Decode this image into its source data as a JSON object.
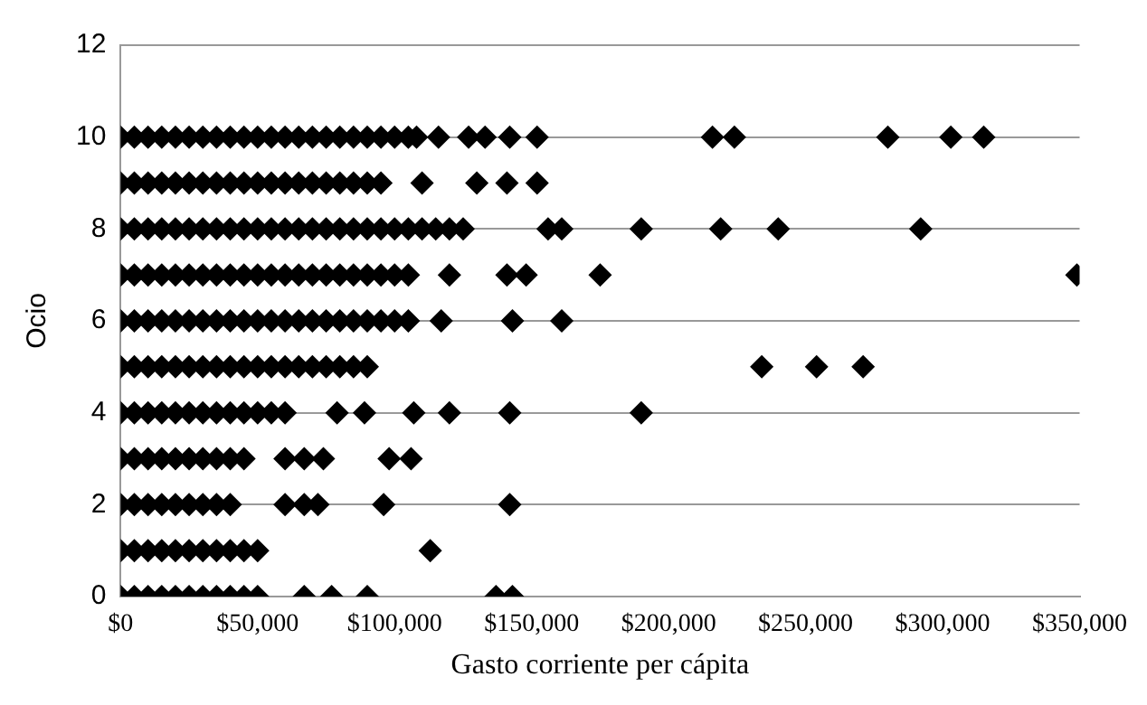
{
  "chart_data": {
    "type": "scatter",
    "xlabel": "Gasto corriente per cápita",
    "ylabel": "Ocio",
    "marker": "diamond",
    "grid": "y",
    "xlim": [
      0,
      350000
    ],
    "xticks": [
      {
        "value": 0,
        "label": "$0"
      },
      {
        "value": 50000,
        "label": "$50,000"
      },
      {
        "value": 100000,
        "label": "$100,000"
      },
      {
        "value": 150000,
        "label": "$150,000"
      },
      {
        "value": 200000,
        "label": "$200,000"
      },
      {
        "value": 250000,
        "label": "$250,000"
      },
      {
        "value": 300000,
        "label": "$300,000"
      },
      {
        "value": 350000,
        "label": "$350,000"
      }
    ],
    "ylim": [
      0,
      12
    ],
    "yticks": [
      0,
      2,
      4,
      6,
      8,
      10,
      12
    ],
    "series": [
      {
        "color": "#000000",
        "x": [
          0,
          5000,
          10000,
          15000,
          20000,
          25000,
          30000,
          35000,
          40000,
          45000,
          50000,
          55000,
          60000,
          65000,
          70000,
          75000,
          80000,
          85000,
          90000,
          95000,
          100000,
          105000,
          108000,
          116000,
          127000,
          133000,
          142000,
          152000,
          216000,
          224000,
          280000,
          303000,
          315000
        ],
        "values": [
          10,
          10,
          10,
          10,
          10,
          10,
          10,
          10,
          10,
          10,
          10,
          10,
          10,
          10,
          10,
          10,
          10,
          10,
          10,
          10,
          10,
          10,
          10,
          10,
          10,
          10,
          10,
          10,
          10,
          10,
          10,
          10,
          10
        ]
      },
      {
        "color": "#000000",
        "x": [
          0,
          5000,
          10000,
          15000,
          20000,
          25000,
          30000,
          35000,
          40000,
          45000,
          50000,
          55000,
          60000,
          65000,
          70000,
          75000,
          80000,
          85000,
          90000,
          95000,
          110000,
          130000,
          141000,
          152000
        ],
        "values": [
          9,
          9,
          9,
          9,
          9,
          9,
          9,
          9,
          9,
          9,
          9,
          9,
          9,
          9,
          9,
          9,
          9,
          9,
          9,
          9,
          9,
          9,
          9,
          9
        ]
      },
      {
        "color": "#000000",
        "x": [
          0,
          5000,
          10000,
          15000,
          20000,
          25000,
          30000,
          35000,
          40000,
          45000,
          50000,
          55000,
          60000,
          65000,
          70000,
          75000,
          80000,
          85000,
          90000,
          95000,
          100000,
          105000,
          110000,
          115000,
          120000,
          125000,
          156000,
          161000,
          190000,
          219000,
          240000,
          292000
        ],
        "values": [
          8,
          8,
          8,
          8,
          8,
          8,
          8,
          8,
          8,
          8,
          8,
          8,
          8,
          8,
          8,
          8,
          8,
          8,
          8,
          8,
          8,
          8,
          8,
          8,
          8,
          8,
          8,
          8,
          8,
          8,
          8,
          8
        ]
      },
      {
        "color": "#000000",
        "x": [
          0,
          5000,
          10000,
          15000,
          20000,
          25000,
          30000,
          35000,
          40000,
          45000,
          50000,
          55000,
          60000,
          65000,
          70000,
          75000,
          80000,
          85000,
          90000,
          95000,
          100000,
          105000,
          120000,
          141000,
          148000,
          175000,
          349000
        ],
        "values": [
          7,
          7,
          7,
          7,
          7,
          7,
          7,
          7,
          7,
          7,
          7,
          7,
          7,
          7,
          7,
          7,
          7,
          7,
          7,
          7,
          7,
          7,
          7,
          7,
          7,
          7,
          7
        ]
      },
      {
        "color": "#000000",
        "x": [
          0,
          5000,
          10000,
          15000,
          20000,
          25000,
          30000,
          35000,
          40000,
          45000,
          50000,
          55000,
          60000,
          65000,
          70000,
          75000,
          80000,
          85000,
          90000,
          95000,
          100000,
          105000,
          117000,
          143000,
          161000
        ],
        "values": [
          6,
          6,
          6,
          6,
          6,
          6,
          6,
          6,
          6,
          6,
          6,
          6,
          6,
          6,
          6,
          6,
          6,
          6,
          6,
          6,
          6,
          6,
          6,
          6,
          6
        ]
      },
      {
        "color": "#000000",
        "x": [
          0,
          5000,
          10000,
          15000,
          20000,
          25000,
          30000,
          35000,
          40000,
          45000,
          50000,
          55000,
          60000,
          65000,
          70000,
          75000,
          80000,
          85000,
          90000,
          234000,
          254000,
          271000
        ],
        "values": [
          5,
          5,
          5,
          5,
          5,
          5,
          5,
          5,
          5,
          5,
          5,
          5,
          5,
          5,
          5,
          5,
          5,
          5,
          5,
          5,
          5,
          5
        ]
      },
      {
        "color": "#000000",
        "x": [
          0,
          5000,
          10000,
          15000,
          20000,
          25000,
          30000,
          35000,
          40000,
          45000,
          50000,
          55000,
          60000,
          79000,
          89000,
          107000,
          120000,
          142000,
          190000
        ],
        "values": [
          4,
          4,
          4,
          4,
          4,
          4,
          4,
          4,
          4,
          4,
          4,
          4,
          4,
          4,
          4,
          4,
          4,
          4,
          4
        ]
      },
      {
        "color": "#000000",
        "x": [
          0,
          5000,
          10000,
          15000,
          20000,
          25000,
          30000,
          35000,
          40000,
          45000,
          60000,
          67000,
          74000,
          98000,
          106000
        ],
        "values": [
          3,
          3,
          3,
          3,
          3,
          3,
          3,
          3,
          3,
          3,
          3,
          3,
          3,
          3,
          3
        ]
      },
      {
        "color": "#000000",
        "x": [
          0,
          5000,
          10000,
          15000,
          20000,
          25000,
          30000,
          35000,
          40000,
          60000,
          67000,
          72000,
          96000,
          142000
        ],
        "values": [
          2,
          2,
          2,
          2,
          2,
          2,
          2,
          2,
          2,
          2,
          2,
          2,
          2,
          2
        ]
      },
      {
        "color": "#000000",
        "x": [
          0,
          5000,
          10000,
          15000,
          20000,
          25000,
          30000,
          35000,
          40000,
          45000,
          50000,
          113000
        ],
        "values": [
          1,
          1,
          1,
          1,
          1,
          1,
          1,
          1,
          1,
          1,
          1,
          1
        ]
      },
      {
        "color": "#000000",
        "x": [
          0,
          5000,
          10000,
          15000,
          20000,
          25000,
          30000,
          35000,
          40000,
          45000,
          50000,
          67000,
          77000,
          90000,
          137000,
          143000
        ],
        "values": [
          0,
          0,
          0,
          0,
          0,
          0,
          0,
          0,
          0,
          0,
          0,
          0,
          0,
          0,
          0,
          0
        ]
      }
    ]
  }
}
